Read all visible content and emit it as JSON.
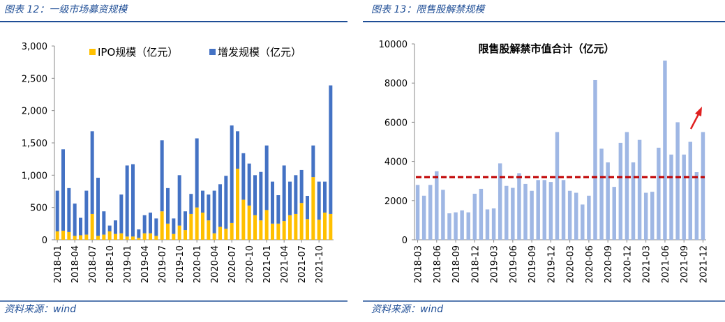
{
  "chart_data": [
    {
      "type": "bar",
      "stacked": true,
      "title": "图表 12：一级市场募资规模",
      "source": "资料来源：wind",
      "categories": [
        "2018-01",
        null,
        null,
        "2018-04",
        null,
        null,
        "2018-07",
        null,
        null,
        "2018-10",
        null,
        null,
        "2019-01",
        null,
        null,
        "2019-04",
        null,
        null,
        "2019-07",
        null,
        null,
        "2019-10",
        null,
        null,
        "2020-01",
        null,
        null,
        "2020-04",
        null,
        null,
        "2020-07",
        null,
        null,
        "2020-10",
        null,
        null,
        "2021-01",
        null,
        null,
        "2021-04",
        null,
        null,
        "2021-07",
        null,
        null,
        "2021-10",
        null,
        null
      ],
      "series": [
        {
          "name": "IPO规模（亿元）",
          "color": "#ffc000",
          "values": [
            130,
            140,
            120,
            60,
            70,
            80,
            400,
            60,
            80,
            130,
            90,
            100,
            50,
            50,
            30,
            100,
            100,
            60,
            440,
            250,
            90,
            220,
            150,
            400,
            500,
            420,
            300,
            100,
            200,
            170,
            260,
            1100,
            620,
            530,
            380,
            300,
            460,
            250,
            250,
            290,
            380,
            400,
            570,
            320,
            970,
            310,
            420,
            400
          ]
        },
        {
          "name": "增发规模（亿元）",
          "color": "#4472c4",
          "values": [
            630,
            1260,
            680,
            500,
            270,
            680,
            1280,
            900,
            360,
            90,
            210,
            600,
            1100,
            1120,
            130,
            280,
            320,
            270,
            1100,
            550,
            240,
            780,
            290,
            310,
            1070,
            340,
            400,
            660,
            660,
            820,
            1510,
            580,
            720,
            650,
            620,
            750,
            1000,
            650,
            440,
            860,
            520,
            600,
            510,
            360,
            490,
            590,
            480,
            1990
          ]
        }
      ],
      "ylim": [
        0,
        3000
      ],
      "yticks": [
        0,
        500,
        {
          "value": 1000,
          "label": "1,000"
        },
        {
          "value": 1500,
          "label": "1,500"
        },
        {
          "value": 2000,
          "label": "2,000"
        },
        {
          "value": 2500,
          "label": "2,500"
        },
        {
          "value": 3000,
          "label": "3,000"
        }
      ],
      "grid": false
    },
    {
      "type": "bar",
      "title": "图表 13：限售股解禁规模",
      "source": "资料来源：wind",
      "categories": [
        "2018-03",
        null,
        null,
        "2018-06",
        null,
        null,
        "2018-09",
        null,
        null,
        "2018-12",
        null,
        null,
        "2019-03",
        null,
        null,
        "2019-06",
        null,
        null,
        "2019-09",
        null,
        null,
        "2019-12",
        null,
        null,
        "2020-03",
        null,
        null,
        "2020-06",
        null,
        null,
        "2020-09",
        null,
        null,
        "2020-12",
        null,
        null,
        "2021-03",
        null,
        null,
        "2021-06",
        null,
        null,
        "2021-09",
        null,
        null,
        "2021-12"
      ],
      "series": [
        {
          "name": "限售股解禁市值合计（亿元）",
          "color": "#9fb7e4",
          "values": [
            2800,
            2250,
            2800,
            3500,
            2550,
            1350,
            1400,
            1500,
            1400,
            2350,
            2600,
            1550,
            1600,
            3900,
            2750,
            2650,
            3400,
            2850,
            2500,
            3050,
            3050,
            2950,
            5500,
            3050,
            2500,
            2400,
            1800,
            2250,
            8150,
            4650,
            3950,
            2700,
            4950,
            5500,
            3950,
            5100,
            2400,
            2450,
            4700,
            9150,
            4350,
            6000,
            4350,
            5000,
            3450,
            5500
          ]
        }
      ],
      "reference_line": 3200,
      "reference_color": "#c00000",
      "ylim": [
        0,
        10000
      ],
      "yticks": [
        0,
        2000,
        4000,
        6000,
        8000,
        10000
      ],
      "grid": false
    }
  ]
}
